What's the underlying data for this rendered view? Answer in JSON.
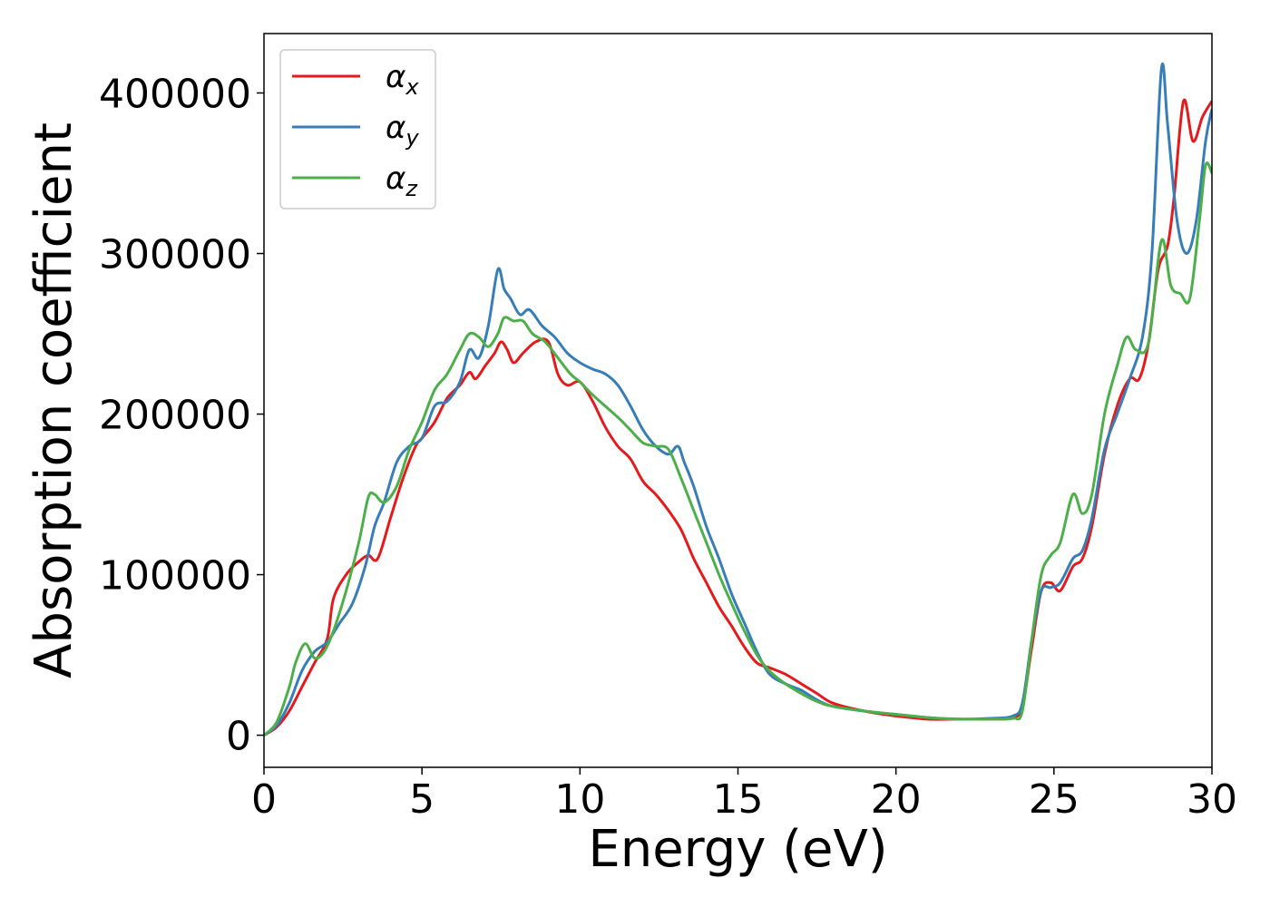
{
  "chart_data": {
    "type": "line",
    "title": "",
    "xlabel": "Energy (eV)",
    "ylabel": "Absorption coefficient",
    "xlim": [
      0,
      30
    ],
    "ylim": [
      -20000,
      437000
    ],
    "x_ticks": [
      0,
      5,
      10,
      15,
      20,
      25,
      30
    ],
    "x_tick_labels": [
      "0",
      "5",
      "10",
      "15",
      "20",
      "25",
      "30"
    ],
    "y_ticks": [
      0,
      100000,
      200000,
      300000,
      400000
    ],
    "y_tick_labels": [
      "0",
      "100000",
      "200000",
      "300000",
      "400000"
    ],
    "grid": false,
    "legend_position": "top-left",
    "series": [
      {
        "name": "α",
        "subscript": "x",
        "color": "#e41a1c",
        "x": [
          0,
          0.4,
          0.8,
          1.2,
          1.6,
          2.0,
          2.2,
          2.6,
          3.0,
          3.3,
          3.6,
          4.0,
          4.4,
          4.8,
          5.0,
          5.4,
          5.8,
          6.2,
          6.5,
          6.7,
          7.0,
          7.3,
          7.5,
          7.7,
          7.9,
          8.2,
          8.6,
          9.0,
          9.3,
          9.6,
          10.0,
          10.4,
          10.8,
          11.2,
          11.6,
          12.0,
          12.4,
          12.8,
          13.2,
          13.6,
          14.0,
          14.4,
          14.8,
          15.2,
          15.6,
          16.0,
          16.5,
          17.0,
          17.5,
          18.0,
          19.0,
          20.0,
          21.0,
          22.0,
          23.0,
          23.7,
          24.0,
          24.3,
          24.6,
          24.9,
          25.2,
          25.6,
          25.9,
          26.2,
          26.6,
          27.0,
          27.4,
          27.7,
          28.0,
          28.3,
          28.6,
          28.8,
          29.1,
          29.4,
          29.7,
          30.0
        ],
        "y": [
          0,
          5000,
          15000,
          30000,
          45000,
          60000,
          85000,
          100000,
          108000,
          112000,
          110000,
          135000,
          160000,
          180000,
          185000,
          195000,
          210000,
          218000,
          226000,
          222000,
          230000,
          238000,
          245000,
          240000,
          232000,
          238000,
          245000,
          245000,
          225000,
          218000,
          220000,
          208000,
          192000,
          180000,
          172000,
          158000,
          150000,
          140000,
          128000,
          110000,
          95000,
          80000,
          68000,
          55000,
          45000,
          42000,
          38000,
          32000,
          26000,
          20000,
          15000,
          12000,
          10000,
          10000,
          10000,
          11000,
          18000,
          55000,
          90000,
          95000,
          90000,
          105000,
          110000,
          130000,
          175000,
          205000,
          222000,
          222000,
          245000,
          290000,
          305000,
          335000,
          395000,
          370000,
          385000,
          395000
        ]
      },
      {
        "name": "α",
        "subscript": "y",
        "color": "#377eb8",
        "x": [
          0,
          0.4,
          0.8,
          1.2,
          1.6,
          2.0,
          2.4,
          2.8,
          3.2,
          3.5,
          3.8,
          4.2,
          4.6,
          5.0,
          5.4,
          5.8,
          6.2,
          6.5,
          6.8,
          7.1,
          7.4,
          7.6,
          7.8,
          8.1,
          8.4,
          8.8,
          9.2,
          9.6,
          10.0,
          10.4,
          10.8,
          11.2,
          11.6,
          12.0,
          12.4,
          12.8,
          13.1,
          13.3,
          13.6,
          14.0,
          14.4,
          14.8,
          15.2,
          15.6,
          16.0,
          16.5,
          17.0,
          17.5,
          18.0,
          19.0,
          20.0,
          21.0,
          22.0,
          23.0,
          23.7,
          24.0,
          24.3,
          24.6,
          24.9,
          25.2,
          25.6,
          25.9,
          26.2,
          26.6,
          27.0,
          27.4,
          27.8,
          28.1,
          28.4,
          28.6,
          28.9,
          29.2,
          29.5,
          29.8,
          30.0
        ],
        "y": [
          0,
          6000,
          20000,
          40000,
          52000,
          58000,
          70000,
          82000,
          105000,
          130000,
          145000,
          170000,
          180000,
          185000,
          205000,
          208000,
          220000,
          240000,
          235000,
          255000,
          290000,
          278000,
          272000,
          262000,
          265000,
          255000,
          248000,
          238000,
          232000,
          228000,
          225000,
          218000,
          205000,
          190000,
          180000,
          175000,
          180000,
          170000,
          155000,
          130000,
          110000,
          88000,
          70000,
          52000,
          38000,
          32000,
          28000,
          22000,
          18000,
          15000,
          13000,
          11000,
          10000,
          10500,
          12000,
          20000,
          60000,
          90000,
          92000,
          95000,
          110000,
          115000,
          135000,
          178000,
          200000,
          222000,
          248000,
          300000,
          415000,
          380000,
          320000,
          300000,
          320000,
          370000,
          390000
        ]
      },
      {
        "name": "α",
        "subscript": "z",
        "color": "#4daf4a",
        "x": [
          0,
          0.4,
          0.8,
          1.0,
          1.3,
          1.6,
          1.9,
          2.2,
          2.6,
          3.0,
          3.3,
          3.5,
          3.8,
          4.2,
          4.6,
          5.0,
          5.4,
          5.8,
          6.2,
          6.5,
          6.8,
          7.1,
          7.4,
          7.6,
          7.9,
          8.2,
          8.5,
          8.9,
          9.3,
          9.7,
          10.0,
          10.4,
          10.8,
          11.2,
          11.6,
          12.0,
          12.4,
          12.8,
          13.2,
          13.6,
          14.0,
          14.4,
          14.8,
          15.2,
          15.6,
          16.0,
          16.5,
          17.0,
          17.5,
          18.0,
          19.0,
          20.0,
          21.0,
          22.0,
          23.0,
          23.7,
          24.0,
          24.3,
          24.6,
          24.9,
          25.2,
          25.6,
          25.9,
          26.2,
          26.6,
          27.0,
          27.3,
          27.6,
          28.0,
          28.4,
          28.7,
          29.0,
          29.3,
          29.6,
          29.8,
          30.0
        ],
        "y": [
          0,
          8000,
          30000,
          45000,
          57000,
          48000,
          52000,
          65000,
          90000,
          120000,
          148000,
          150000,
          145000,
          155000,
          178000,
          195000,
          215000,
          225000,
          240000,
          250000,
          248000,
          242000,
          250000,
          260000,
          258000,
          258000,
          250000,
          245000,
          235000,
          225000,
          220000,
          212000,
          205000,
          198000,
          190000,
          182000,
          180000,
          178000,
          160000,
          140000,
          120000,
          100000,
          82000,
          65000,
          50000,
          40000,
          32000,
          26000,
          21000,
          18000,
          15000,
          13000,
          11000,
          10000,
          10000,
          10500,
          15000,
          60000,
          100000,
          112000,
          120000,
          150000,
          138000,
          150000,
          200000,
          230000,
          248000,
          240000,
          245000,
          308000,
          280000,
          275000,
          272000,
          320000,
          355000,
          350000
        ]
      }
    ]
  }
}
